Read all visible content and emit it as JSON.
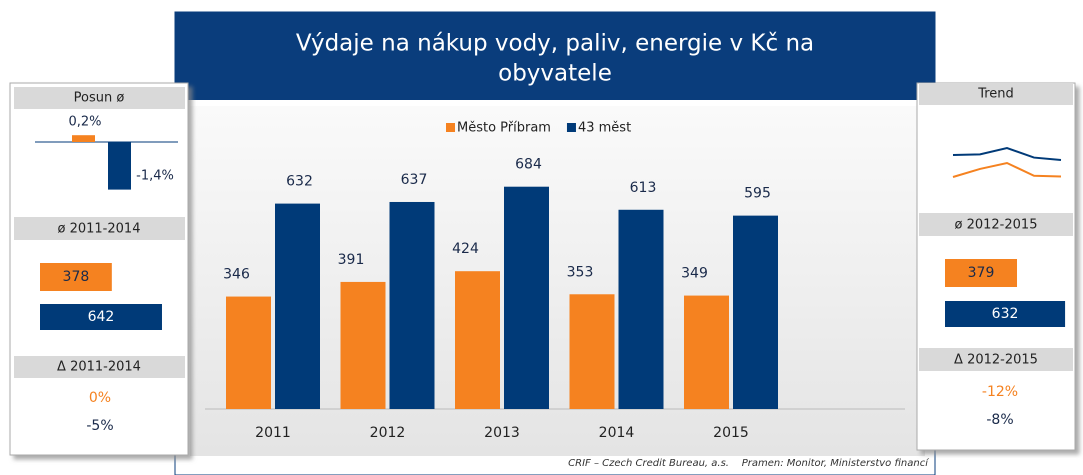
{
  "chart_data": {
    "type": "bar",
    "title": "Výdaje na  nákup vody, paliv, energie v Kč na obyvatele",
    "title_lines": [
      "Výdaje na  nákup vody, paliv, energie v Kč na",
      "obyvatele"
    ],
    "categories": [
      "2011",
      "2012",
      "2013",
      "2014",
      "2015"
    ],
    "series": [
      {
        "name": "Město Příbram",
        "color": "#f58220",
        "values": [
          346,
          391,
          424,
          353,
          349
        ]
      },
      {
        "name": "43 měst",
        "color": "#003a78",
        "values": [
          632,
          637,
          684,
          613,
          595
        ]
      }
    ],
    "source": "CRIF – Czech Credit Bureau, a.s.    Pramen: Monitor, Ministerstvo financí"
  },
  "left_panel": {
    "shift": {
      "title": "Posun ø",
      "values": [
        0.2,
        -1.4
      ],
      "value_labels": [
        "0,2%",
        "-1,4%"
      ]
    },
    "average": {
      "title": "ø 2011-2014",
      "values": [
        378,
        642
      ]
    },
    "change": {
      "title": "Δ 2011-2014",
      "values": [
        "0%",
        "-5%"
      ]
    }
  },
  "right_panel": {
    "trend": {
      "title": "Trend"
    },
    "average": {
      "title": "ø 2012-2015",
      "values": [
        379,
        632
      ]
    },
    "change": {
      "title": "Δ 2012-2015",
      "values": [
        "-12%",
        "-8%"
      ]
    }
  }
}
